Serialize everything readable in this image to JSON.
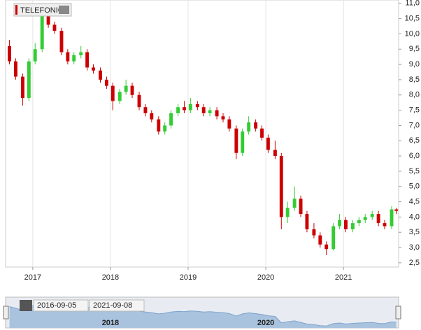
{
  "chart_data": {
    "type": "candlestick",
    "title": "TELEFONIC",
    "x": [
      2016.7,
      2016.78,
      2016.87,
      2016.95,
      2017.03,
      2017.12,
      2017.2,
      2017.28,
      2017.37,
      2017.45,
      2017.53,
      2017.62,
      2017.7,
      2017.78,
      2017.87,
      2017.95,
      2018.03,
      2018.12,
      2018.2,
      2018.28,
      2018.37,
      2018.45,
      2018.53,
      2018.62,
      2018.7,
      2018.78,
      2018.87,
      2018.95,
      2019.03,
      2019.12,
      2019.2,
      2019.28,
      2019.37,
      2019.45,
      2019.53,
      2019.62,
      2019.7,
      2019.78,
      2019.87,
      2019.95,
      2020.03,
      2020.12,
      2020.2,
      2020.28,
      2020.37,
      2020.45,
      2020.53,
      2020.62,
      2020.7,
      2020.78,
      2020.87,
      2020.95,
      2021.03,
      2021.12,
      2021.2,
      2021.28,
      2021.37,
      2021.45,
      2021.53,
      2021.62,
      2021.68
    ],
    "open": [
      9.6,
      9.1,
      8.6,
      7.9,
      9.1,
      9.5,
      10.6,
      10.3,
      10.1,
      9.4,
      9.1,
      9.3,
      9.4,
      8.9,
      8.8,
      8.5,
      8.3,
      7.8,
      8.1,
      8.3,
      8.0,
      7.6,
      7.4,
      7.2,
      6.8,
      7.0,
      7.4,
      7.6,
      7.5,
      7.7,
      7.6,
      7.4,
      7.5,
      7.3,
      7.2,
      6.9,
      6.1,
      6.8,
      7.1,
      6.9,
      6.6,
      6.2,
      6.0,
      4.0,
      4.3,
      4.6,
      4.1,
      3.6,
      3.4,
      3.1,
      2.95,
      3.7,
      3.9,
      3.6,
      3.8,
      3.9,
      4.0,
      4.1,
      3.8,
      3.7,
      4.25
    ],
    "high": [
      9.8,
      9.2,
      8.7,
      9.2,
      9.7,
      10.8,
      10.7,
      10.4,
      10.2,
      9.5,
      9.4,
      9.6,
      9.5,
      9.0,
      8.9,
      8.6,
      8.4,
      8.2,
      8.5,
      8.4,
      8.1,
      7.7,
      7.5,
      7.3,
      7.1,
      7.5,
      7.7,
      7.8,
      7.9,
      7.8,
      7.7,
      7.6,
      7.6,
      7.4,
      7.3,
      7.0,
      6.9,
      7.3,
      7.2,
      7.0,
      6.7,
      6.5,
      6.1,
      4.5,
      5.0,
      4.7,
      4.2,
      3.8,
      3.5,
      3.2,
      3.8,
      4.1,
      4.0,
      3.9,
      4.0,
      4.1,
      4.2,
      4.2,
      3.9,
      4.35,
      4.3
    ],
    "low": [
      9.0,
      8.5,
      7.65,
      7.8,
      9.0,
      9.4,
      10.2,
      10.0,
      9.3,
      9.0,
      9.0,
      9.2,
      8.8,
      8.7,
      8.4,
      8.2,
      7.5,
      7.7,
      8.0,
      7.9,
      7.5,
      7.3,
      7.1,
      6.7,
      6.7,
      6.9,
      7.3,
      7.4,
      7.4,
      7.5,
      7.3,
      7.3,
      7.2,
      7.1,
      6.8,
      5.9,
      6.0,
      6.7,
      6.8,
      6.5,
      6.1,
      5.9,
      3.6,
      3.8,
      4.2,
      4.0,
      3.5,
      3.3,
      3.0,
      2.75,
      2.9,
      3.6,
      3.5,
      3.5,
      3.7,
      3.8,
      3.9,
      3.7,
      3.6,
      3.6,
      4.1
    ],
    "close": [
      9.1,
      8.6,
      7.9,
      9.1,
      9.5,
      10.6,
      10.3,
      10.1,
      9.4,
      9.1,
      9.3,
      9.4,
      8.9,
      8.8,
      8.5,
      8.3,
      7.8,
      8.1,
      8.3,
      8.0,
      7.6,
      7.4,
      7.2,
      6.8,
      7.0,
      7.4,
      7.6,
      7.5,
      7.7,
      7.6,
      7.4,
      7.5,
      7.3,
      7.2,
      6.9,
      6.1,
      6.8,
      7.1,
      6.9,
      6.6,
      6.2,
      6.0,
      4.0,
      4.3,
      4.6,
      4.1,
      3.6,
      3.4,
      3.1,
      2.95,
      3.7,
      3.9,
      3.6,
      3.8,
      3.9,
      4.0,
      4.1,
      3.8,
      3.7,
      4.25,
      4.2
    ],
    "up_color": "#33cc33",
    "down_color": "#cc0000",
    "xlim": [
      2016.65,
      2021.71
    ],
    "xticks": [
      2017,
      2018,
      2019,
      2020,
      2021
    ],
    "ylim": [
      2.36,
      11.11
    ],
    "yticks": [
      {
        "value": 2.5,
        "label": "2,5"
      },
      {
        "value": 3,
        "label": "3,0"
      },
      {
        "value": 3.5,
        "label": "3,5"
      },
      {
        "value": 4,
        "label": "4,0"
      },
      {
        "value": 4.5,
        "label": "4,5"
      },
      {
        "value": 5,
        "label": "5,0"
      },
      {
        "value": 5.5,
        "label": "5,5"
      },
      {
        "value": 6,
        "label": "6,0"
      },
      {
        "value": 6.5,
        "label": "6,5"
      },
      {
        "value": 7,
        "label": "7,0"
      },
      {
        "value": 7.5,
        "label": "7,5"
      },
      {
        "value": 8,
        "label": "8,0"
      },
      {
        "value": 8.5,
        "label": "8,5"
      },
      {
        "value": 9,
        "label": "9,0"
      },
      {
        "value": 9.5,
        "label": "9,5"
      },
      {
        "value": 10,
        "label": "10,0"
      },
      {
        "value": 10.5,
        "label": "10,5"
      },
      {
        "value": 11,
        "label": "11,0"
      }
    ],
    "grid": true,
    "navigator": {
      "xticks": [
        2018,
        2020
      ],
      "start": "2016-09-05",
      "end": "2021-09-08"
    }
  }
}
